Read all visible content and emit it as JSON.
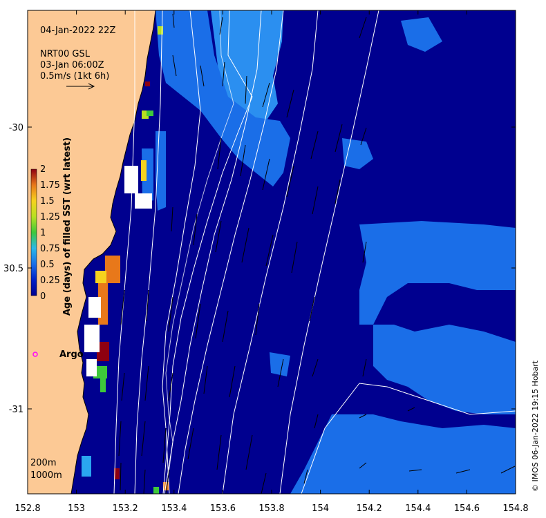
{
  "map": {
    "title": "04-Jan-2022 22Z",
    "product_label": "NRT00 GSL",
    "product_time": "03-Jan 06:00Z",
    "scale_label": "0.5m/s (1kt 6h)",
    "argo_label": "Argo",
    "isobath_labels": [
      "200m",
      "1000m"
    ],
    "copyright": "© IMOS 06-Jan-2022 19:15 Hobart",
    "x_ticks": [
      "152.8",
      "153",
      "153.2",
      "153.4",
      "153.6",
      "153.8",
      "154",
      "154.2",
      "154.4",
      "154.6",
      "154.8"
    ],
    "y_ticks": [
      "-30",
      "30.5",
      "-31"
    ],
    "colors": {
      "land": "#fcc995",
      "ocean_dark": "#00008f",
      "ocean_mid": "#0a2fc8",
      "ocean_light": "#1e7ce8",
      "ocean_lightest": "#2aa6f0",
      "argo_marker": "#ff00ff"
    }
  },
  "colorbar": {
    "title": "Age (days) of filled SST (wrt latest)",
    "tick_labels": [
      "2",
      "1.75",
      "1.5",
      "1.25",
      "1",
      "0.75",
      "0.5",
      "0.25",
      "0"
    ]
  }
}
